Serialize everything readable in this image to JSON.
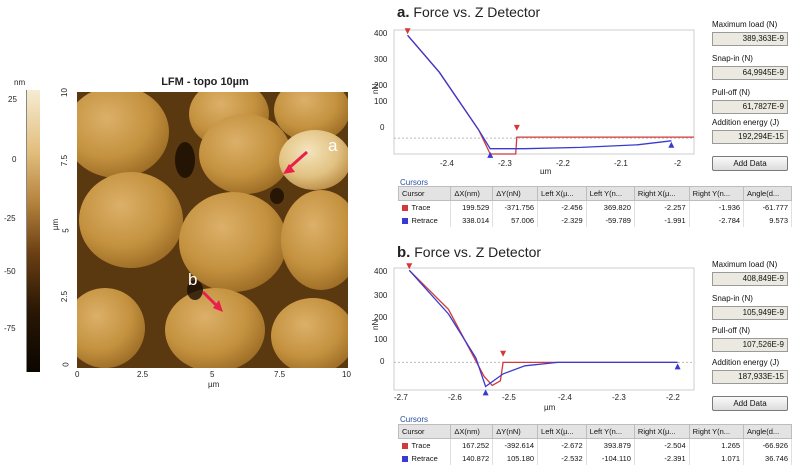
{
  "colorbar": {
    "unit": "nm",
    "ticks": [
      "25",
      "0",
      "-25",
      "-50",
      "-75"
    ]
  },
  "afm_image": {
    "title": "LFM - topo 10µm",
    "x_ticks": [
      "0",
      "2.5",
      "5",
      "7.5",
      "10"
    ],
    "y_ticks": [
      "10",
      "7.5",
      "5",
      "2.5",
      "0"
    ],
    "x_label": "µm",
    "y_label": "µm",
    "annotations": [
      "a",
      "b"
    ]
  },
  "panel_a": {
    "letter": "a.",
    "title": "Force vs. Z Detector",
    "y_label": "nN",
    "x_label": "µm",
    "y_ticks": [
      "400",
      "300",
      "200",
      "100",
      "0"
    ],
    "x_ticks": [
      "-2.4",
      "-2.3",
      "-2.2",
      "-2.1",
      "-2"
    ],
    "side": {
      "max_load_label": "Maximum load (N)",
      "max_load": "389,363E-9",
      "snap_in_label": "Snap-in (N)",
      "snap_in": "64,9945E-9",
      "pull_off_label": "Pull-off (N)",
      "pull_off": "61,7827E-9",
      "energy_label": "Addition energy (J)",
      "energy": "192,294E-15",
      "add_data": "Add Data"
    },
    "cursors_title": "Cursors",
    "columns": [
      "Cursor",
      "ΔX(nm)",
      "ΔY(nN)",
      "Left X(µ...",
      "Left Y(n...",
      "Right X(µ...",
      "Right Y(n...",
      "Angle(d..."
    ],
    "rows": [
      [
        "Trace",
        "199.529",
        "-371.756",
        "-2.456",
        "369.820",
        "-2.257",
        "-1.936",
        "-61.777"
      ],
      [
        "Retrace",
        "338.014",
        "57.006",
        "-2.329",
        "-59.789",
        "-1.991",
        "-2.784",
        "9.573"
      ]
    ]
  },
  "panel_b": {
    "letter": "b.",
    "title": "Force vs. Z Detector",
    "y_label": "nN",
    "x_label": "µm",
    "y_ticks": [
      "400",
      "300",
      "200",
      "100",
      "0"
    ],
    "x_ticks": [
      "-2.7",
      "-2.6",
      "-2.5",
      "-2.4",
      "-2.3",
      "-2.2"
    ],
    "side": {
      "max_load_label": "Maximum load (N)",
      "max_load": "408,849E-9",
      "snap_in_label": "Snap-in (N)",
      "snap_in": "105,949E-9",
      "pull_off_label": "Pull-off (N)",
      "pull_off": "107,526E-9",
      "energy_label": "Addition energy (J)",
      "energy": "187,933E-15",
      "add_data": "Add Data"
    },
    "cursors_title": "Cursors",
    "columns": [
      "Cursor",
      "ΔX(nm)",
      "ΔY(nN)",
      "Left X(µ...",
      "Left Y(n...",
      "Right X(µ...",
      "Right Y(n...",
      "Angle(d..."
    ],
    "rows": [
      [
        "Trace",
        "167.252",
        "-392.614",
        "-2.672",
        "393.879",
        "-2.504",
        "1.265",
        "-66.926"
      ],
      [
        "Retrace",
        "140.872",
        "105.180",
        "-2.532",
        "-104.110",
        "-2.391",
        "1.071",
        "36.746"
      ]
    ]
  },
  "colors": {
    "trace": "#d23a3a",
    "retrace": "#3a3ad2",
    "link": "#2b4fa0"
  },
  "chart_data": [
    {
      "type": "line",
      "xlim": [
        -2.48,
        -1.95
      ],
      "ylim": [
        -60,
        410
      ],
      "series": [
        {
          "name": "Trace",
          "x": [
            -2.456,
            -2.4,
            -2.33,
            -2.31,
            -2.265,
            -2.263,
            -2.2,
            -1.95
          ],
          "y": [
            390,
            250,
            30,
            -60,
            -60,
            4,
            4,
            4
          ]
        },
        {
          "name": "Retrace",
          "x": [
            -2.456,
            -2.4,
            -2.33,
            -2.31,
            -2.25,
            -2.15,
            -2.05,
            -1.99
          ],
          "y": [
            390,
            250,
            30,
            -40,
            -40,
            -35,
            -25,
            -10
          ]
        }
      ]
    },
    {
      "type": "line",
      "xlim": [
        -2.7,
        -2.15
      ],
      "ylim": [
        -120,
        410
      ],
      "series": [
        {
          "name": "Trace",
          "x": [
            -2.672,
            -2.6,
            -2.535,
            -2.52,
            -2.505,
            -2.5,
            -2.4,
            -2.18
          ],
          "y": [
            400,
            230,
            -60,
            -100,
            -80,
            0,
            0,
            0
          ]
        },
        {
          "name": "Retrace",
          "x": [
            -2.672,
            -2.6,
            -2.55,
            -2.532,
            -2.5,
            -2.46,
            -2.4,
            -2.18
          ],
          "y": [
            400,
            210,
            20,
            -105,
            -50,
            -15,
            0,
            0
          ]
        }
      ]
    }
  ]
}
